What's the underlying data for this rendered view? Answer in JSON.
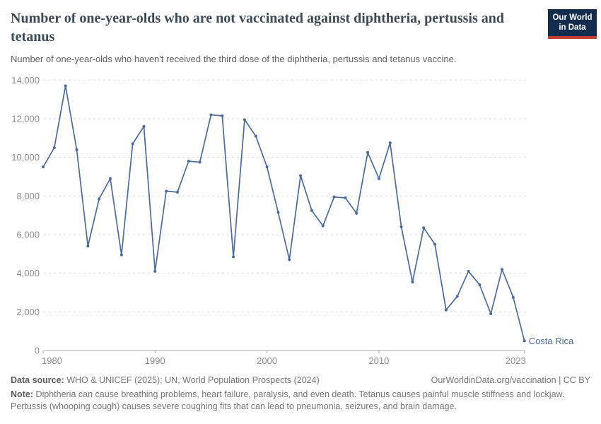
{
  "header": {
    "title": "Number of one-year-olds who are not vaccinated against diphtheria, pertussis and tetanus",
    "subtitle": "Number of one-year-olds who haven't received the third dose of the diphtheria, pertussis and tetanus vaccine.",
    "logo": {
      "line1": "Our World",
      "line2": "in Data",
      "bg_color": "#132c4d",
      "accent_color": "#c33d33"
    }
  },
  "chart_data": {
    "type": "line",
    "title": "Number of one-year-olds who are not vaccinated against diphtheria, pertussis and tetanus",
    "xlabel": "",
    "ylabel": "",
    "ylim": [
      0,
      14000
    ],
    "yticks": [
      0,
      2000,
      4000,
      6000,
      8000,
      10000,
      12000,
      14000
    ],
    "ytick_labels": [
      "0",
      "2,000",
      "4,000",
      "6,000",
      "8,000",
      "10,000",
      "12,000",
      "14,000"
    ],
    "xticks": [
      1980,
      1990,
      2000,
      2010,
      2023
    ],
    "grid": "horizontal-dashed",
    "legend_position": "end-of-line-label",
    "series": [
      {
        "name": "Costa Rica",
        "color": "#4c6a9c",
        "x": [
          1980,
          1981,
          1982,
          1983,
          1984,
          1985,
          1986,
          1987,
          1988,
          1989,
          1990,
          1991,
          1992,
          1993,
          1994,
          1995,
          1996,
          1997,
          1998,
          1999,
          2000,
          2001,
          2002,
          2003,
          2004,
          2005,
          2006,
          2007,
          2008,
          2009,
          2010,
          2011,
          2012,
          2013,
          2014,
          2015,
          2016,
          2017,
          2018,
          2019,
          2020,
          2021,
          2022,
          2023
        ],
        "values": [
          9500,
          10500,
          13700,
          10400,
          5400,
          7850,
          8900,
          4950,
          10700,
          11600,
          4100,
          8250,
          8200,
          9800,
          9750,
          12200,
          12150,
          4850,
          11950,
          11100,
          9500,
          7150,
          4700,
          9050,
          7250,
          6450,
          7950,
          7900,
          7100,
          10250,
          8900,
          10750,
          6400,
          3550,
          6350,
          5500,
          2100,
          2800,
          4100,
          3400,
          1900,
          4200,
          2750,
          500
        ]
      }
    ]
  },
  "footer": {
    "datasource_label": "Data source:",
    "datasource": "WHO & UNICEF (2025); UN, World Population Prospects (2024)",
    "link": "OurWorldinData.org/vaccination | CC BY",
    "note_label": "Note:",
    "note": "Diphtheria can cause breathing problems, heart failure, paralysis, and even death. Tetanus causes painful muscle stiffness and lockjaw. Pertussis (whooping cough) causes severe coughing fits that can lead to pneumonia, seizures, and brain damage."
  }
}
